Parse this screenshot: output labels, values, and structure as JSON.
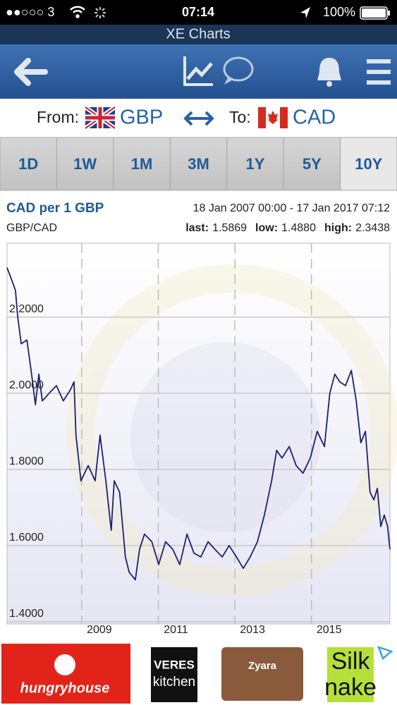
{
  "status_bar": {
    "carrier": "●●○○○ 3",
    "time": "07:14",
    "battery": "100%"
  },
  "app_title": "XE Charts",
  "currency_row": {
    "from_label": "From:",
    "from": "GBP",
    "to_label": "To:",
    "to": "CAD"
  },
  "tabs": {
    "items": [
      "1D",
      "1W",
      "1M",
      "3M",
      "1Y",
      "5Y",
      "10Y"
    ],
    "selected": 6
  },
  "stats": [
    {
      "label": "last:",
      "value": "1.5869"
    },
    {
      "label": "low:",
      "value": "1.4880"
    },
    {
      "label": "high:",
      "value": "2.3438"
    }
  ],
  "ads": [
    "hungryhouse",
    "VERES",
    "kitchen",
    "Zyara",
    "Silk",
    "nake"
  ],
  "chart_data": {
    "type": "line",
    "title": "CAD per 1 GBP",
    "subtitle": "18 Jan 2007 00:00 - 17 Jan 2017 07:12",
    "pair": "GBP/CAD",
    "color": "#1c2170",
    "grid": true,
    "x": [
      2007.05,
      2007.2,
      2007.27,
      2007.33,
      2007.42,
      2007.57,
      2007.69,
      2007.79,
      2007.88,
      2007.97,
      2008.15,
      2008.34,
      2008.52,
      2008.71,
      2008.8,
      2008.85,
      2008.98,
      2009.17,
      2009.35,
      2009.48,
      2009.63,
      2009.77,
      2009.85,
      2009.99,
      2010.14,
      2010.24,
      2010.4,
      2010.51,
      2010.64,
      2010.83,
      2011.01,
      2011.19,
      2011.38,
      2011.56,
      2011.75,
      2011.93,
      2012.11,
      2012.3,
      2012.48,
      2012.67,
      2012.85,
      2013.04,
      2013.22,
      2013.4,
      2013.59,
      2013.77,
      2013.96,
      2014.09,
      2014.23,
      2014.42,
      2014.6,
      2014.78,
      2014.97,
      2015.15,
      2015.34,
      2015.48,
      2015.61,
      2015.74,
      2015.89,
      2016.04,
      2016.17,
      2016.29,
      2016.41,
      2016.53,
      2016.63,
      2016.72,
      2016.81,
      2016.9,
      2016.99,
      2017.05
    ],
    "values": [
      2.33,
      2.29,
      2.27,
      2.2,
      2.13,
      2.14,
      2.05,
      1.97,
      2.05,
      1.98,
      2.0,
      2.02,
      1.98,
      2.01,
      2.03,
      1.89,
      1.77,
      1.81,
      1.77,
      1.89,
      1.77,
      1.64,
      1.77,
      1.74,
      1.57,
      1.53,
      1.51,
      1.59,
      1.63,
      1.61,
      1.55,
      1.61,
      1.59,
      1.55,
      1.63,
      1.58,
      1.57,
      1.61,
      1.59,
      1.57,
      1.6,
      1.57,
      1.54,
      1.57,
      1.61,
      1.68,
      1.77,
      1.85,
      1.83,
      1.86,
      1.81,
      1.79,
      1.83,
      1.9,
      1.86,
      2.0,
      2.05,
      2.03,
      2.02,
      2.06,
      1.98,
      1.87,
      1.9,
      1.74,
      1.72,
      1.75,
      1.65,
      1.68,
      1.65,
      1.59
    ],
    "xlim": [
      2007.05,
      2017.05
    ],
    "xticks": [
      2009,
      2011,
      2013,
      2015
    ],
    "ylim": [
      1.394,
      2.394
    ],
    "yticks": [
      {
        "value": 1.4,
        "label": "1.4000"
      },
      {
        "value": 1.6,
        "label": "1.6000"
      },
      {
        "value": 1.8,
        "label": "1.8000"
      },
      {
        "value": 2.0,
        "label": "2.0000"
      },
      {
        "value": 2.2,
        "label": "2.2000"
      }
    ]
  }
}
